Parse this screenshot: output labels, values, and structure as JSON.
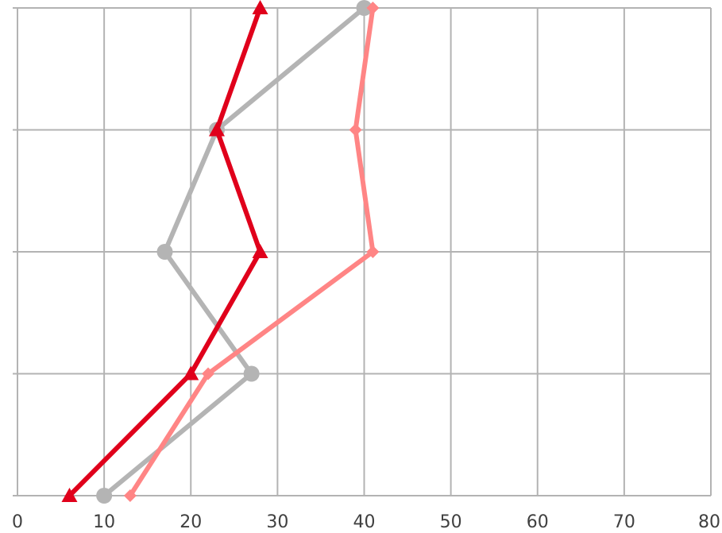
{
  "chart_data": {
    "type": "line",
    "orientation": "vertical-profile",
    "title": "",
    "xlabel": "",
    "ylabel": "",
    "xlim": [
      0,
      80
    ],
    "xticks": [
      "0",
      "10",
      "20",
      "30",
      "40",
      "50",
      "60",
      "70",
      "80"
    ],
    "y_levels": 5,
    "grid": true,
    "legend": "none",
    "series": [
      {
        "color": "#e0001b",
        "marker": "triangle",
        "values": [
          6,
          20,
          28,
          23,
          28
        ]
      },
      {
        "color": "#ff8585",
        "marker": "diamond",
        "values": [
          13,
          22,
          41,
          39,
          41
        ]
      },
      {
        "color": "#b4b4b4",
        "marker": "circle",
        "values": [
          10,
          27,
          17,
          23,
          40
        ]
      }
    ]
  }
}
